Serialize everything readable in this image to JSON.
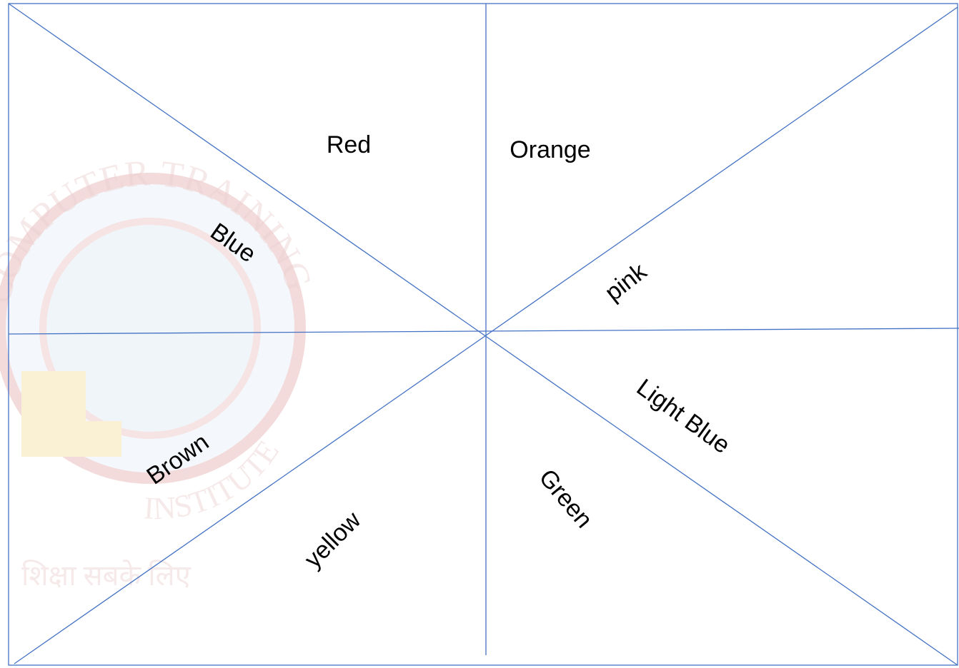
{
  "labels": [
    "Red",
    "Orange",
    "Blue",
    "pink",
    "Light Blue",
    "Brown",
    "yellow",
    "Green"
  ],
  "watermark": {
    "top_text": "COMPUTER TRAINING",
    "bottom_text": "INSTITUTE",
    "tagline": "शिक्षा सबके लिए"
  }
}
